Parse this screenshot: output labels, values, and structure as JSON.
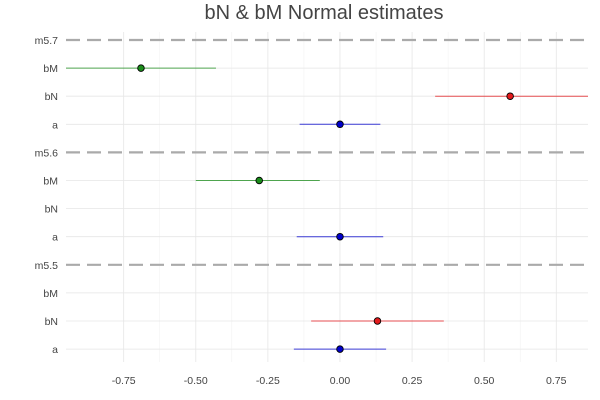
{
  "chart_data": {
    "type": "scatter",
    "title": "bN & bM Normal estimates",
    "xlabel": "",
    "ylabel": "",
    "xlim": [
      -0.95,
      0.86
    ],
    "x_ticks": [
      -0.75,
      -0.5,
      -0.25,
      0.0,
      0.25,
      0.5,
      0.75
    ],
    "x_tick_labels": [
      "-0.75",
      "-0.50",
      "-0.25",
      "0.00",
      "0.25",
      "0.50",
      "0.75"
    ],
    "grid": true,
    "colors": {
      "a": "#0000cc",
      "bN": "#e31a1c",
      "bM": "#1a8c1a",
      "separator": "#aaaaaa"
    },
    "rows": [
      {
        "label": "m5.7",
        "kind": "model"
      },
      {
        "label": "bM",
        "param": "bM",
        "mean": -0.69,
        "lower": -0.95,
        "upper": -0.43
      },
      {
        "label": "bN",
        "param": "bN",
        "mean": 0.59,
        "lower": 0.33,
        "upper": 0.86
      },
      {
        "label": "a",
        "param": "a",
        "mean": 0.0,
        "lower": -0.14,
        "upper": 0.14
      },
      {
        "label": "m5.6",
        "kind": "model"
      },
      {
        "label": "bM",
        "param": "bM",
        "mean": -0.28,
        "lower": -0.5,
        "upper": -0.07
      },
      {
        "label": "bN",
        "param": "bN",
        "mean": null,
        "lower": null,
        "upper": null
      },
      {
        "label": "a",
        "param": "a",
        "mean": 0.0,
        "lower": -0.15,
        "upper": 0.15
      },
      {
        "label": "m5.5",
        "kind": "model"
      },
      {
        "label": "bM",
        "param": "bM",
        "mean": null,
        "lower": null,
        "upper": null
      },
      {
        "label": "bN",
        "param": "bN",
        "mean": 0.13,
        "lower": -0.1,
        "upper": 0.36
      },
      {
        "label": "a",
        "param": "a",
        "mean": 0.0,
        "lower": -0.16,
        "upper": 0.16
      }
    ]
  }
}
